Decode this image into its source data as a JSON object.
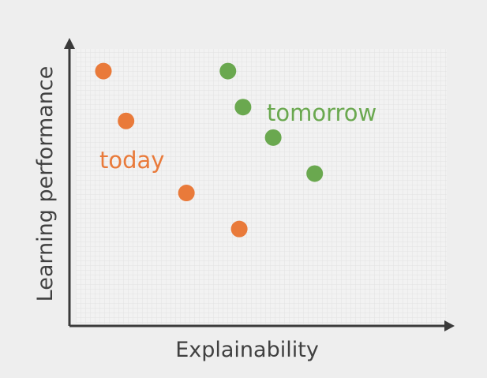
{
  "chart_data": {
    "type": "scatter",
    "title": "",
    "xlabel": "Explainability",
    "ylabel": "Learning performance",
    "xlim": [
      0,
      100
    ],
    "ylim": [
      0,
      100
    ],
    "grid": true,
    "x_ticks_shown": false,
    "y_ticks_shown": false,
    "series": [
      {
        "name": "today",
        "color": "#e97a3a",
        "points": [
          {
            "x": 9,
            "y": 92
          },
          {
            "x": 15,
            "y": 74
          },
          {
            "x": 31,
            "y": 48
          },
          {
            "x": 45,
            "y": 35
          }
        ]
      },
      {
        "name": "tomorrow",
        "color": "#6aa84f",
        "points": [
          {
            "x": 42,
            "y": 92
          },
          {
            "x": 46,
            "y": 79
          },
          {
            "x": 54,
            "y": 68
          },
          {
            "x": 65,
            "y": 55
          }
        ]
      }
    ]
  }
}
